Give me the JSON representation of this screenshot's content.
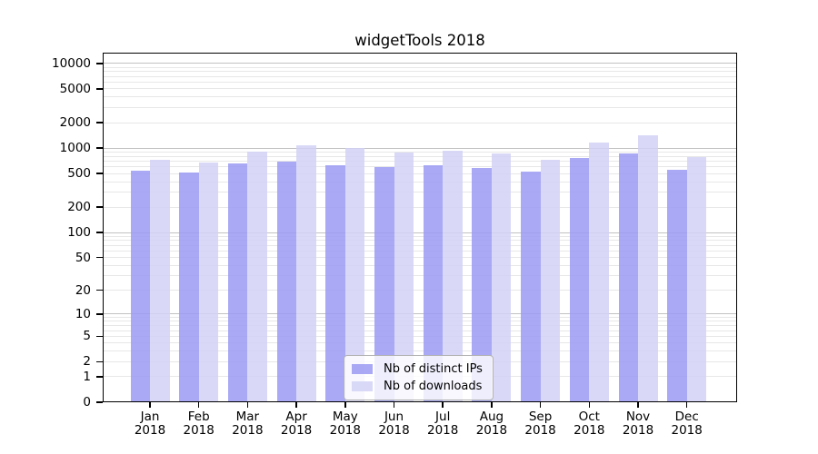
{
  "chart_data": {
    "type": "bar",
    "title": "widgetTools 2018",
    "categories": [
      "Jan",
      "Feb",
      "Mar",
      "Apr",
      "May",
      "Jun",
      "Jul",
      "Aug",
      "Sep",
      "Oct",
      "Nov",
      "Dec"
    ],
    "category_year": "2018",
    "series": [
      {
        "name": "Nb of distinct IPs",
        "color": "#9a9af3",
        "alpha": 0.85,
        "values": [
          540,
          515,
          655,
          695,
          630,
          590,
          630,
          578,
          530,
          770,
          855,
          555
        ]
      },
      {
        "name": "Nb of downloads",
        "color": "#d2d2f6",
        "alpha": 0.85,
        "values": [
          730,
          680,
          910,
          1080,
          1005,
          890,
          925,
          875,
          730,
          1150,
          1430,
          785
        ]
      }
    ],
    "yscale": "log1p",
    "yticks": [
      0,
      1,
      2,
      5,
      10,
      20,
      50,
      100,
      200,
      500,
      1000,
      2000,
      5000,
      10000
    ],
    "ylim": [
      0,
      13400
    ],
    "xlabel": "",
    "ylabel": "",
    "grid": true,
    "grid_minor_color": "#e7e7e7",
    "grid_major_color": "#c2c2c2",
    "legend": {
      "position": "lower-center",
      "entries": [
        "Nb of distinct IPs",
        "Nb of downloads"
      ]
    }
  }
}
